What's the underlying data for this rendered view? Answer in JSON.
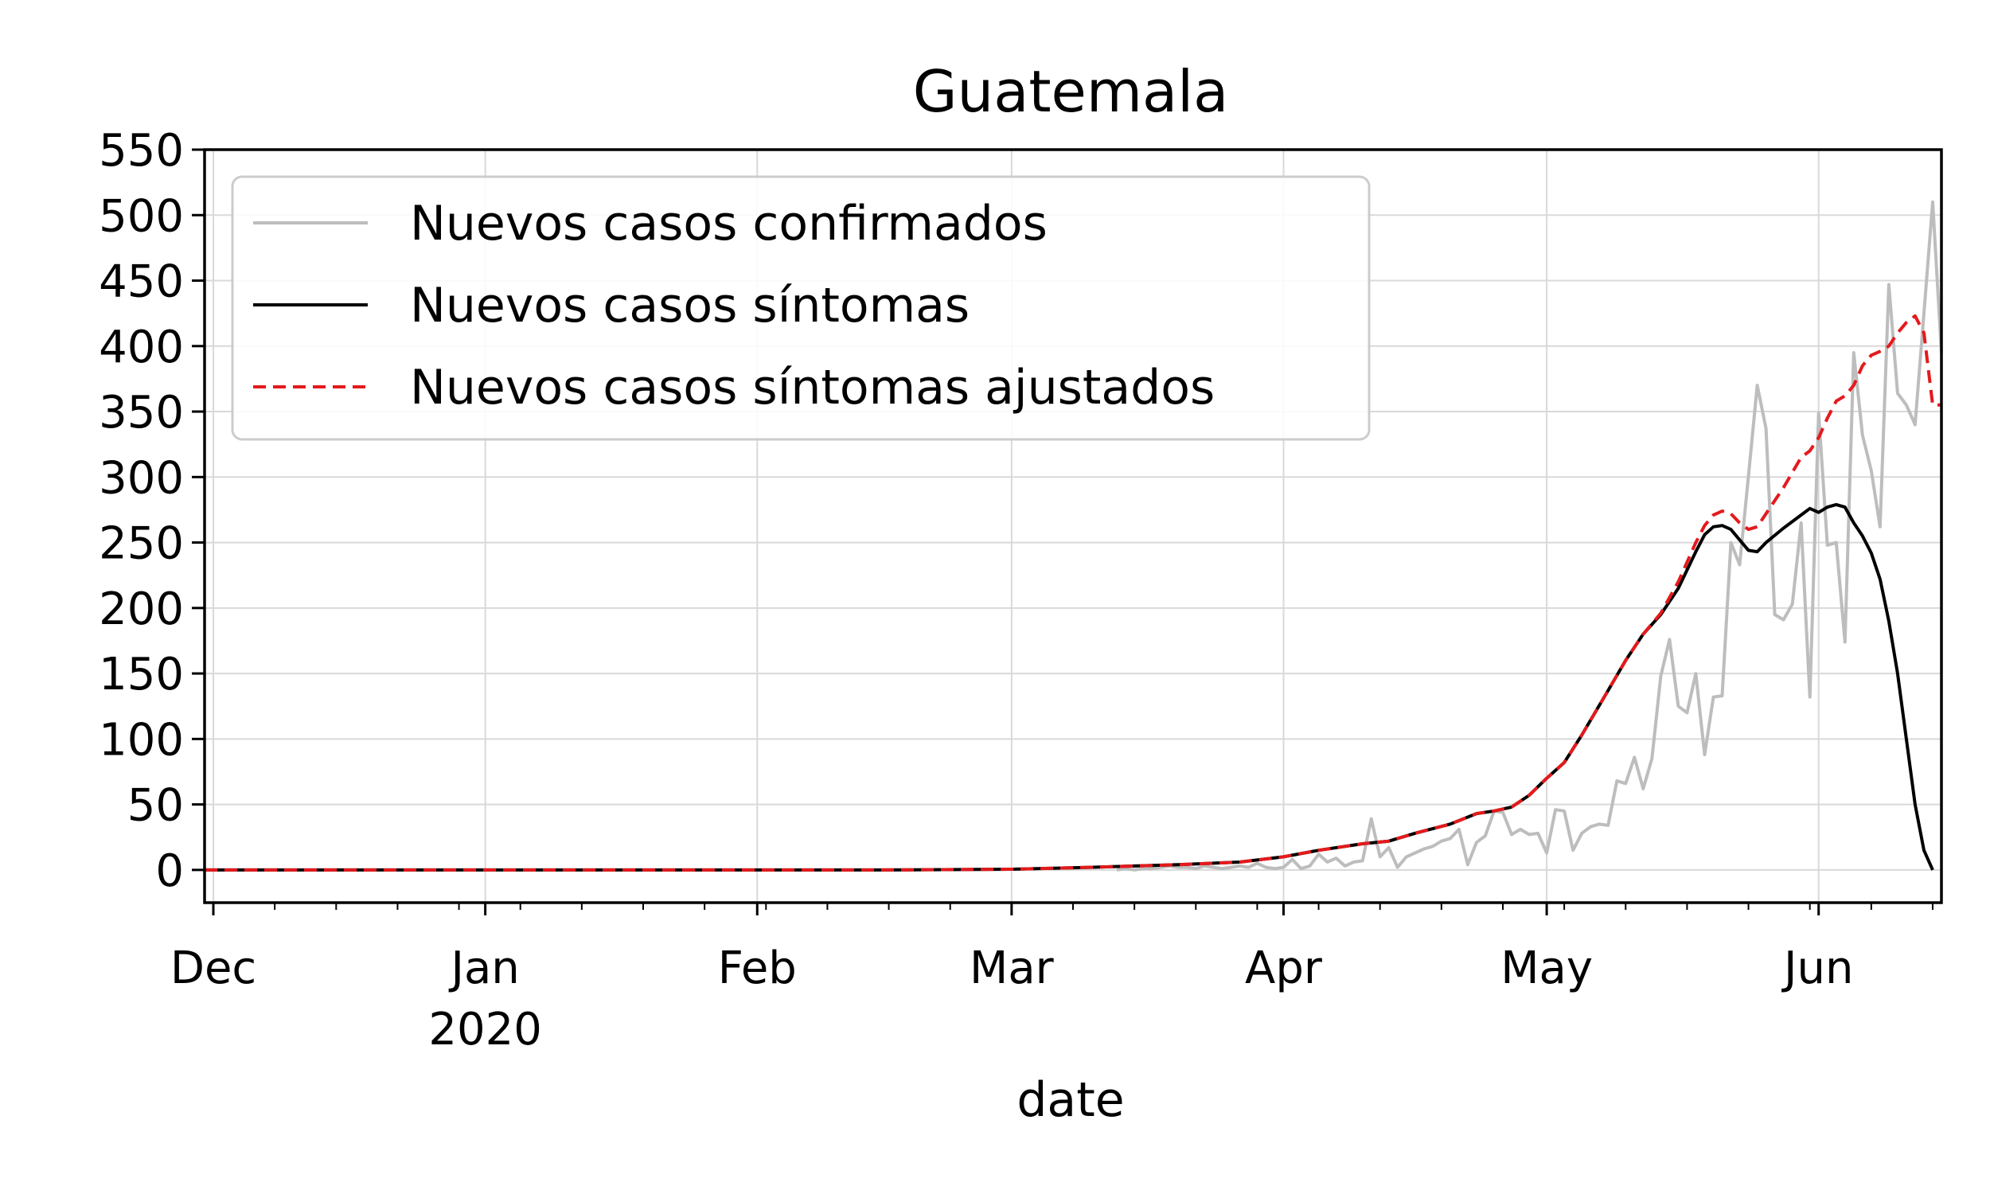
{
  "chart_data": {
    "type": "line",
    "title": "Guatemala",
    "xlabel": "date",
    "ylabel": "",
    "ylim": [
      -25,
      550
    ],
    "xlim": [
      "2019-11-30",
      "2020-06-15"
    ],
    "yticks": [
      0,
      50,
      100,
      150,
      200,
      250,
      300,
      350,
      400,
      450,
      500,
      550
    ],
    "xticks": [
      {
        "date": "2019-12-01",
        "label": "Dec",
        "sublabel": ""
      },
      {
        "date": "2020-01-01",
        "label": "Jan",
        "sublabel": "2020"
      },
      {
        "date": "2020-02-01",
        "label": "Feb",
        "sublabel": ""
      },
      {
        "date": "2020-03-01",
        "label": "Mar",
        "sublabel": ""
      },
      {
        "date": "2020-04-01",
        "label": "Apr",
        "sublabel": ""
      },
      {
        "date": "2020-05-01",
        "label": "May",
        "sublabel": ""
      },
      {
        "date": "2020-06-01",
        "label": "Jun",
        "sublabel": ""
      }
    ],
    "grid": true,
    "legend_position": "top-left",
    "series": [
      {
        "name": "Nuevos casos confirmados",
        "color": "#bdbdbd",
        "style": "solid",
        "points": [
          [
            "2020-03-13",
            0
          ],
          [
            "2020-03-14",
            1
          ],
          [
            "2020-03-15",
            0
          ],
          [
            "2020-03-16",
            1
          ],
          [
            "2020-03-17",
            1
          ],
          [
            "2020-03-18",
            2
          ],
          [
            "2020-03-19",
            3
          ],
          [
            "2020-03-20",
            2
          ],
          [
            "2020-03-21",
            2
          ],
          [
            "2020-03-22",
            1
          ],
          [
            "2020-03-23",
            3
          ],
          [
            "2020-03-24",
            2
          ],
          [
            "2020-03-25",
            1
          ],
          [
            "2020-03-26",
            2
          ],
          [
            "2020-03-27",
            3
          ],
          [
            "2020-03-28",
            2
          ],
          [
            "2020-03-29",
            5
          ],
          [
            "2020-03-30",
            2
          ],
          [
            "2020-03-31",
            1
          ],
          [
            "2020-04-01",
            2
          ],
          [
            "2020-04-02",
            8
          ],
          [
            "2020-04-03",
            1
          ],
          [
            "2020-04-04",
            3
          ],
          [
            "2020-04-05",
            12
          ],
          [
            "2020-04-06",
            6
          ],
          [
            "2020-04-07",
            9
          ],
          [
            "2020-04-08",
            3
          ],
          [
            "2020-04-09",
            6
          ],
          [
            "2020-04-10",
            7
          ],
          [
            "2020-04-11",
            39
          ],
          [
            "2020-04-12",
            10
          ],
          [
            "2020-04-13",
            17
          ],
          [
            "2020-04-14",
            2
          ],
          [
            "2020-04-15",
            10
          ],
          [
            "2020-04-16",
            13
          ],
          [
            "2020-04-17",
            16
          ],
          [
            "2020-04-18",
            18
          ],
          [
            "2020-04-19",
            22
          ],
          [
            "2020-04-20",
            24
          ],
          [
            "2020-04-21",
            31
          ],
          [
            "2020-04-22",
            4
          ],
          [
            "2020-04-23",
            21
          ],
          [
            "2020-04-24",
            26
          ],
          [
            "2020-04-25",
            45
          ],
          [
            "2020-04-26",
            44
          ],
          [
            "2020-04-27",
            27
          ],
          [
            "2020-04-28",
            31
          ],
          [
            "2020-04-29",
            27
          ],
          [
            "2020-04-30",
            28
          ],
          [
            "2020-05-01",
            13
          ],
          [
            "2020-05-02",
            46
          ],
          [
            "2020-05-03",
            45
          ],
          [
            "2020-05-04",
            15
          ],
          [
            "2020-05-05",
            28
          ],
          [
            "2020-05-06",
            33
          ],
          [
            "2020-05-07",
            35
          ],
          [
            "2020-05-08",
            34
          ],
          [
            "2020-05-09",
            68
          ],
          [
            "2020-05-10",
            66
          ],
          [
            "2020-05-11",
            86
          ],
          [
            "2020-05-12",
            62
          ],
          [
            "2020-05-13",
            85
          ],
          [
            "2020-05-14",
            148
          ],
          [
            "2020-05-15",
            176
          ],
          [
            "2020-05-16",
            125
          ],
          [
            "2020-05-17",
            120
          ],
          [
            "2020-05-18",
            150
          ],
          [
            "2020-05-19",
            88
          ],
          [
            "2020-05-20",
            132
          ],
          [
            "2020-05-21",
            133
          ],
          [
            "2020-05-22",
            250
          ],
          [
            "2020-05-23",
            233
          ],
          [
            "2020-05-24",
            301
          ],
          [
            "2020-05-25",
            370
          ],
          [
            "2020-05-26",
            337
          ],
          [
            "2020-05-27",
            195
          ],
          [
            "2020-05-28",
            191
          ],
          [
            "2020-05-29",
            203
          ],
          [
            "2020-05-30",
            265
          ],
          [
            "2020-05-31",
            132
          ],
          [
            "2020-06-01",
            349
          ],
          [
            "2020-06-02",
            248
          ],
          [
            "2020-06-03",
            250
          ],
          [
            "2020-06-04",
            174
          ],
          [
            "2020-06-05",
            395
          ],
          [
            "2020-06-06",
            332
          ],
          [
            "2020-06-07",
            305
          ],
          [
            "2020-06-08",
            262
          ],
          [
            "2020-06-09",
            447
          ],
          [
            "2020-06-10",
            364
          ],
          [
            "2020-06-11",
            355
          ],
          [
            "2020-06-12",
            340
          ],
          [
            "2020-06-13",
            425
          ],
          [
            "2020-06-14",
            510
          ],
          [
            "2020-06-15",
            395
          ]
        ]
      },
      {
        "name": "Nuevos casos síntomas",
        "color": "#000000",
        "style": "solid",
        "points": [
          [
            "2019-11-30",
            0
          ],
          [
            "2020-02-15",
            0
          ],
          [
            "2020-03-01",
            0.5
          ],
          [
            "2020-03-10",
            2
          ],
          [
            "2020-03-20",
            4
          ],
          [
            "2020-03-27",
            6
          ],
          [
            "2020-04-01",
            10
          ],
          [
            "2020-04-05",
            15
          ],
          [
            "2020-04-10",
            20
          ],
          [
            "2020-04-13",
            22
          ],
          [
            "2020-04-16",
            28
          ],
          [
            "2020-04-20",
            35
          ],
          [
            "2020-04-23",
            43
          ],
          [
            "2020-04-25",
            45
          ],
          [
            "2020-04-27",
            48
          ],
          [
            "2020-04-29",
            57
          ],
          [
            "2020-05-01",
            70
          ],
          [
            "2020-05-03",
            82
          ],
          [
            "2020-05-05",
            103
          ],
          [
            "2020-05-08",
            137
          ],
          [
            "2020-05-10",
            160
          ],
          [
            "2020-05-12",
            180
          ],
          [
            "2020-05-14",
            195
          ],
          [
            "2020-05-16",
            215
          ],
          [
            "2020-05-18",
            243
          ],
          [
            "2020-05-19",
            256
          ],
          [
            "2020-05-20",
            262
          ],
          [
            "2020-05-21",
            263
          ],
          [
            "2020-05-22",
            260
          ],
          [
            "2020-05-23",
            252
          ],
          [
            "2020-05-24",
            244
          ],
          [
            "2020-05-25",
            243
          ],
          [
            "2020-05-26",
            250
          ],
          [
            "2020-05-28",
            261
          ],
          [
            "2020-05-30",
            271
          ],
          [
            "2020-05-31",
            276
          ],
          [
            "2020-06-01",
            273
          ],
          [
            "2020-06-02",
            277
          ],
          [
            "2020-06-03",
            279
          ],
          [
            "2020-06-04",
            277
          ],
          [
            "2020-06-05",
            265
          ],
          [
            "2020-06-06",
            255
          ],
          [
            "2020-06-07",
            242
          ],
          [
            "2020-06-08",
            222
          ],
          [
            "2020-06-09",
            190
          ],
          [
            "2020-06-10",
            150
          ],
          [
            "2020-06-11",
            100
          ],
          [
            "2020-06-12",
            50
          ],
          [
            "2020-06-13",
            15
          ],
          [
            "2020-06-14",
            0
          ]
        ]
      },
      {
        "name": "Nuevos casos síntomas ajustados",
        "color": "#e41a1c",
        "style": "dashed",
        "points": [
          [
            "2019-11-30",
            0
          ],
          [
            "2020-02-15",
            0
          ],
          [
            "2020-03-01",
            0.5
          ],
          [
            "2020-03-10",
            2
          ],
          [
            "2020-03-20",
            4
          ],
          [
            "2020-03-27",
            6
          ],
          [
            "2020-04-01",
            10
          ],
          [
            "2020-04-05",
            15
          ],
          [
            "2020-04-10",
            20
          ],
          [
            "2020-04-13",
            22
          ],
          [
            "2020-04-16",
            28
          ],
          [
            "2020-04-20",
            35
          ],
          [
            "2020-04-23",
            43
          ],
          [
            "2020-04-25",
            45
          ],
          [
            "2020-04-27",
            48
          ],
          [
            "2020-04-29",
            57
          ],
          [
            "2020-05-01",
            70
          ],
          [
            "2020-05-03",
            82
          ],
          [
            "2020-05-05",
            103
          ],
          [
            "2020-05-08",
            137
          ],
          [
            "2020-05-10",
            160
          ],
          [
            "2020-05-12",
            180
          ],
          [
            "2020-05-14",
            196
          ],
          [
            "2020-05-16",
            220
          ],
          [
            "2020-05-18",
            250
          ],
          [
            "2020-05-19",
            263
          ],
          [
            "2020-05-20",
            271
          ],
          [
            "2020-05-21",
            274
          ],
          [
            "2020-05-22",
            272
          ],
          [
            "2020-05-23",
            265
          ],
          [
            "2020-05-24",
            260
          ],
          [
            "2020-05-25",
            262
          ],
          [
            "2020-05-26",
            272
          ],
          [
            "2020-05-28",
            292
          ],
          [
            "2020-05-30",
            315
          ],
          [
            "2020-05-31",
            320
          ],
          [
            "2020-06-01",
            330
          ],
          [
            "2020-06-02",
            345
          ],
          [
            "2020-06-03",
            358
          ],
          [
            "2020-06-04",
            362
          ],
          [
            "2020-06-05",
            370
          ],
          [
            "2020-06-06",
            385
          ],
          [
            "2020-06-07",
            393
          ],
          [
            "2020-06-08",
            396
          ],
          [
            "2020-06-09",
            400
          ],
          [
            "2020-06-10",
            410
          ],
          [
            "2020-06-11",
            418
          ],
          [
            "2020-06-12",
            423
          ],
          [
            "2020-06-13",
            410
          ],
          [
            "2020-06-14",
            355
          ],
          [
            "2020-06-15",
            355
          ]
        ]
      }
    ]
  }
}
